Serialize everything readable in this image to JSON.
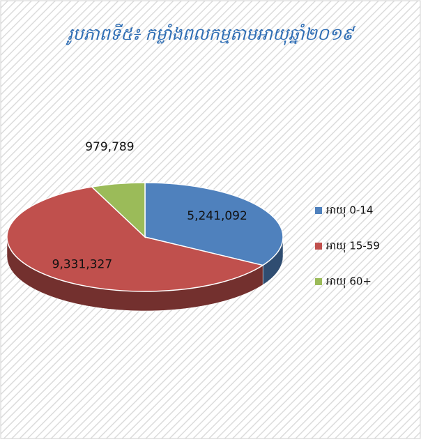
{
  "chart_data": {
    "type": "pie",
    "title": "រូបភាពទី៥៖ កម្លាំងពលកម្មតាមអាយុឆ្នាំ២០១៩",
    "categories": [
      "អាយុ 0-14",
      "អាយុ 15-59",
      "អាយុ 60+"
    ],
    "values": [
      5241092,
      9331327,
      979789
    ],
    "value_labels": [
      "5,241,092",
      "9,331,327",
      "979,789"
    ],
    "colors": [
      "#4f81bd",
      "#c0504d",
      "#9bbb59"
    ],
    "legend": "right"
  }
}
